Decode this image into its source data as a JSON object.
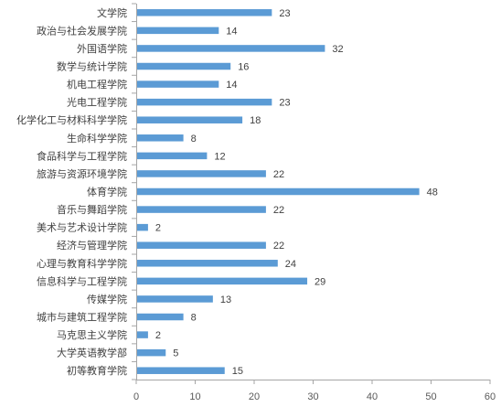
{
  "chart_data": {
    "type": "bar",
    "orientation": "horizontal",
    "categories": [
      "文学院",
      "政治与社会发展学院",
      "外国语学院",
      "数学与统计学院",
      "机电工程学院",
      "光电工程学院",
      "化学化工与材料科学学院",
      "生命科学学院",
      "食品科学与工程学院",
      "旅游与资源环境学院",
      "体育学院",
      "音乐与舞蹈学院",
      "美术与艺术设计学院",
      "经济与管理学院",
      "心理与教育科学学院",
      "信息科学与工程学院",
      "传媒学院",
      "城市与建筑工程学院",
      "马克思主义学院",
      "大学英语教学部",
      "初等教育学院"
    ],
    "values": [
      23,
      14,
      32,
      16,
      14,
      23,
      18,
      8,
      12,
      22,
      48,
      22,
      2,
      22,
      24,
      29,
      13,
      8,
      2,
      5,
      15
    ],
    "xlim": [
      0,
      60
    ],
    "xticks": [
      "0",
      "10",
      "20",
      "30",
      "40",
      "50",
      "60"
    ],
    "data_labels": true,
    "grid": false,
    "legend": "none",
    "bar_color": "#5b9bd5",
    "axis_color": "#a6a6a6",
    "text_color": "#404040"
  }
}
